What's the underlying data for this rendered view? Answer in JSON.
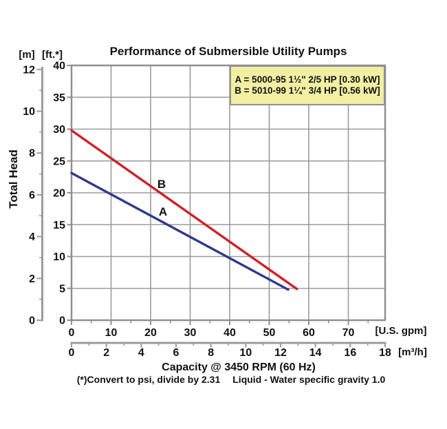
{
  "chart_data": {
    "type": "line",
    "title": "Performance of Submersible Utility Pumps",
    "y_title": "Total Head",
    "x_title": "Capacity @ 3450 RPM (60 Hz)",
    "footnote_left": "(*)Convert to psi, divide by 2.31",
    "footnote_right": "Liquid - Water specific gravity 1.0",
    "x_axis_primary": {
      "unit": "[U.S. gpm]",
      "min": 0,
      "max": 79.3,
      "major_ticks": [
        0,
        10,
        20,
        30,
        40,
        50,
        60,
        70
      ],
      "minor_step": 5
    },
    "x_axis_secondary": {
      "unit": "[m³/h]",
      "min": 0,
      "max": 18,
      "major_ticks": [
        0,
        2,
        4,
        6,
        8,
        10,
        12,
        14,
        16,
        18
      ],
      "minor_step": 1
    },
    "y_axis_primary": {
      "unit": "[ft.*]",
      "min": 0,
      "max": 40,
      "major_ticks": [
        0,
        5,
        10,
        15,
        20,
        25,
        30,
        35,
        40
      ]
    },
    "y_axis_secondary": {
      "unit": "[m]",
      "min": 0,
      "max": 12.192,
      "major_ticks": [
        0,
        2,
        4,
        6,
        8,
        10,
        12
      ],
      "minor_step": 1
    },
    "grid": {
      "on": true,
      "x_step_gpm": 10,
      "y_step_ft": 5
    },
    "series": [
      {
        "id": "A",
        "label": "A",
        "model": "5000-95",
        "color": "#2e3a8c",
        "points_gpm_ft": [
          [
            0,
            23.1
          ],
          [
            54.8,
            4.8
          ]
        ]
      },
      {
        "id": "B",
        "label": "B",
        "model": "5010-99",
        "color": "#cf2128",
        "points_gpm_ft": [
          [
            0,
            29.8
          ],
          [
            57.0,
            4.9
          ]
        ]
      }
    ],
    "legend": {
      "bg": "#f2efa3",
      "border": "#8f8f8f",
      "entries": [
        "A = 5000-95 1½\" 2/5 HP [0.30 kW]",
        "B = 5010-99 1¼\" 3/4 HP [0.56 kW]"
      ]
    },
    "colors": {
      "grid": "#9b9b9b",
      "frame": "#8f8f8f",
      "text": "#111111"
    }
  }
}
